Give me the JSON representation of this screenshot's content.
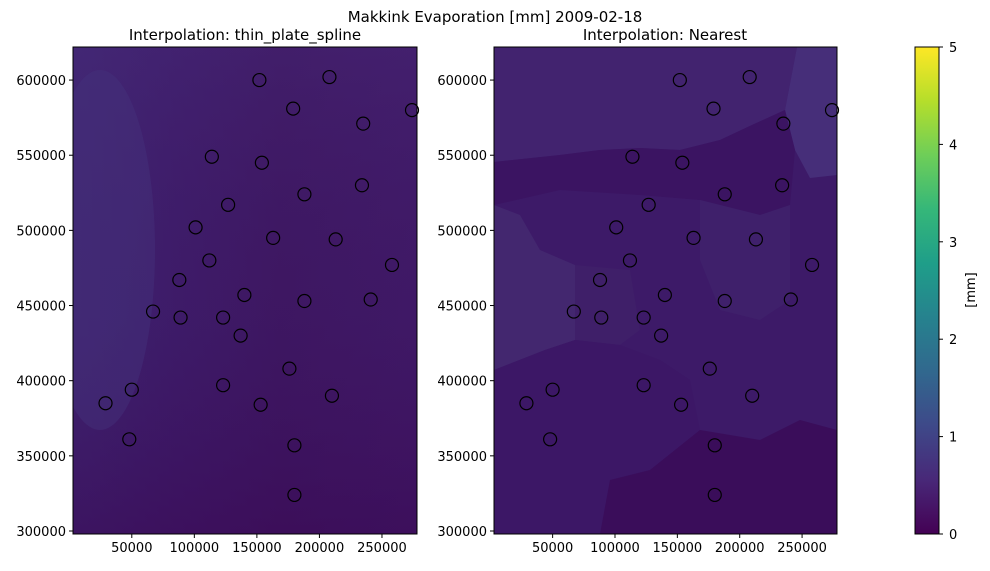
{
  "figure": {
    "suptitle": "Makkink Evaporation [mm] 2009-02-18"
  },
  "chart_data": [
    {
      "type": "heatmap",
      "title": "Interpolation: thin_plate_spline",
      "method": "thin_plate_spline",
      "xlim": [
        3000,
        278000
      ],
      "ylim": [
        298000,
        622000
      ],
      "xticks": [
        50000,
        100000,
        150000,
        200000,
        250000
      ],
      "yticks": [
        300000,
        350000,
        400000,
        450000,
        500000,
        550000,
        600000
      ],
      "colorscale": "viridis",
      "vmin": 0,
      "vmax": 5,
      "field_value_range_mm": [
        0.0,
        0.4
      ],
      "grid": false,
      "stations": {
        "x": [
          152000,
          208000,
          179000,
          274000,
          235000,
          114000,
          154000,
          188000,
          127000,
          234000,
          101000,
          163000,
          213000,
          112000,
          258000,
          88000,
          140000,
          241000,
          188000,
          67000,
          89000,
          123000,
          137000,
          176000,
          123000,
          50000,
          29000,
          153000,
          210000,
          48000,
          180000,
          180000
        ],
        "y": [
          600000,
          602000,
          581000,
          580000,
          571000,
          549000,
          545000,
          524000,
          517000,
          530000,
          502000,
          495000,
          494000,
          480000,
          477000,
          467000,
          457000,
          454000,
          453000,
          446000,
          442000,
          442000,
          430000,
          408000,
          397000,
          394000,
          385000,
          384000,
          390000,
          361000,
          357000,
          324000
        ]
      }
    },
    {
      "type": "heatmap",
      "title": "Interpolation: Nearest",
      "method": "nearest",
      "xlim": [
        3000,
        278000
      ],
      "ylim": [
        298000,
        622000
      ],
      "xticks": [
        50000,
        100000,
        150000,
        200000,
        250000
      ],
      "yticks": [
        300000,
        350000,
        400000,
        450000,
        500000,
        550000,
        600000
      ],
      "colorscale": "viridis",
      "vmin": 0,
      "vmax": 5,
      "field_value_range_mm": [
        0.0,
        0.4
      ],
      "grid": false,
      "stations": {
        "x": [
          152000,
          208000,
          179000,
          274000,
          235000,
          114000,
          154000,
          188000,
          127000,
          234000,
          101000,
          163000,
          213000,
          112000,
          258000,
          88000,
          140000,
          241000,
          188000,
          67000,
          89000,
          123000,
          137000,
          176000,
          123000,
          50000,
          29000,
          153000,
          210000,
          48000,
          180000,
          180000
        ],
        "y": [
          600000,
          602000,
          581000,
          580000,
          571000,
          549000,
          545000,
          524000,
          517000,
          530000,
          502000,
          495000,
          494000,
          480000,
          477000,
          467000,
          457000,
          454000,
          453000,
          446000,
          442000,
          442000,
          430000,
          408000,
          397000,
          394000,
          385000,
          384000,
          390000,
          361000,
          357000,
          324000
        ]
      }
    }
  ],
  "colorbar": {
    "label": "[mm]",
    "ticks": [
      0,
      1,
      2,
      3,
      4,
      5
    ],
    "vmin": 0,
    "vmax": 5,
    "colors": [
      "#440154",
      "#482878",
      "#3e4989",
      "#31688e",
      "#26828e",
      "#1f9e89",
      "#35b779",
      "#6ece58",
      "#b5de2b",
      "#fde725"
    ]
  }
}
